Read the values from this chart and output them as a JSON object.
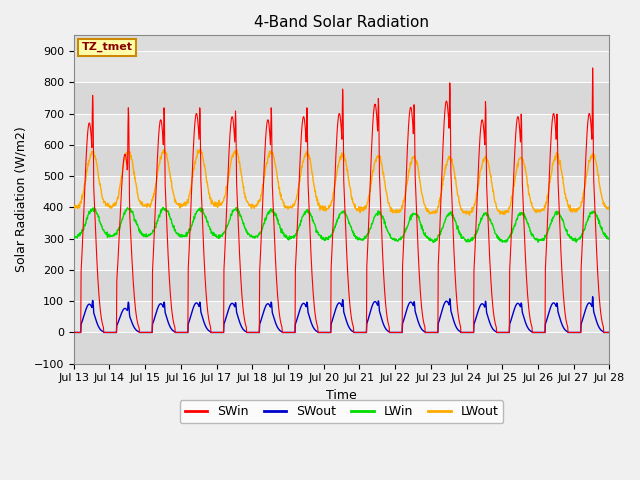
{
  "title": "4-Band Solar Radiation",
  "xlabel": "Time",
  "ylabel": "Solar Radiation (W/m2)",
  "annotation": "TZ_tmet",
  "xlim_start": 0,
  "xlim_end": 360,
  "ylim": [
    -100,
    950
  ],
  "yticks": [
    -100,
    0,
    100,
    200,
    300,
    400,
    500,
    600,
    700,
    800,
    900
  ],
  "xtick_labels": [
    "Jul 13",
    "Jul 14",
    "Jul 15",
    "Jul 16",
    "Jul 17",
    "Jul 18",
    "Jul 19",
    "Jul 20",
    "Jul 21",
    "Jul 22",
    "Jul 23",
    "Jul 24",
    "Jul 25",
    "Jul 26",
    "Jul 27",
    "Jul 28"
  ],
  "xtick_positions": [
    0,
    24,
    48,
    72,
    96,
    120,
    144,
    168,
    192,
    216,
    240,
    264,
    288,
    312,
    336,
    360
  ],
  "colors": {
    "SWin": "#ff0000",
    "SWout": "#0000cc",
    "LWin": "#00dd00",
    "LWout": "#ffaa00"
  },
  "background_color": "#dcdcdc",
  "fig_bg_color": "#f0f0f0",
  "title_fontsize": 11,
  "axis_label_fontsize": 9,
  "tick_fontsize": 8,
  "legend_fontsize": 9,
  "annotation_bg": "#ffffaa",
  "annotation_border": "#cc8800",
  "annotation_text_color": "#8B0000"
}
